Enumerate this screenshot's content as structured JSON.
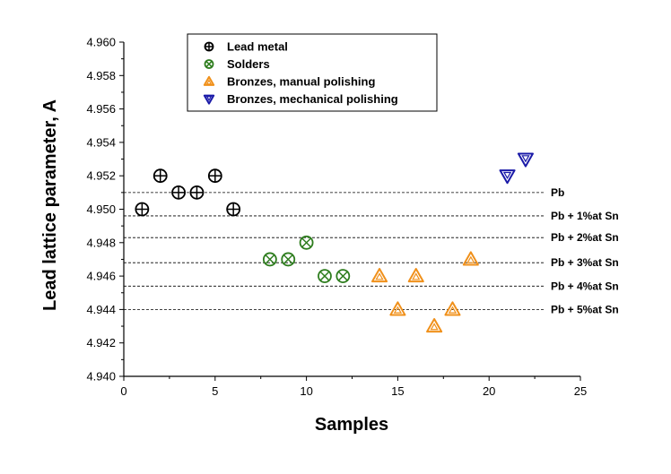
{
  "chart_data": {
    "type": "scatter",
    "title": "",
    "xlabel": "Samples",
    "ylabel": "Lead lattice parameter, A",
    "xlim": [
      0,
      25
    ],
    "ylim": [
      4.94,
      4.96
    ],
    "xticks": [
      "0",
      "5",
      "10",
      "15",
      "20",
      "25"
    ],
    "yticks": [
      "4.940",
      "4.942",
      "4.944",
      "4.946",
      "4.948",
      "4.950",
      "4.952",
      "4.954",
      "4.956",
      "4.958",
      "4.960"
    ],
    "grid": false,
    "legend_position": "top-left",
    "series": [
      {
        "name": "Lead metal",
        "marker": "circle-plus",
        "color": "#000000",
        "x": [
          1,
          2,
          3,
          4,
          5,
          6
        ],
        "y": [
          4.95,
          4.952,
          4.951,
          4.951,
          4.952,
          4.95
        ]
      },
      {
        "name": "Solders",
        "marker": "circle-x",
        "color": "#2e7d1e",
        "x": [
          8,
          9,
          10,
          11,
          12
        ],
        "y": [
          4.947,
          4.947,
          4.948,
          4.946,
          4.946
        ]
      },
      {
        "name": "Bronzes, manual polishing",
        "marker": "triangle-up",
        "color": "#f0901a",
        "x": [
          14,
          15,
          16,
          17,
          18,
          19
        ],
        "y": [
          4.946,
          4.944,
          4.946,
          4.943,
          4.944,
          4.947
        ]
      },
      {
        "name": "Bronzes, mechanical polishing",
        "marker": "triangle-down",
        "color": "#1a1aa8",
        "x": [
          21,
          22
        ],
        "y": [
          4.952,
          4.953
        ]
      }
    ],
    "reference_lines": [
      {
        "label": "Pb",
        "y": 4.951
      },
      {
        "label": "Pb + 1%at Sn",
        "y": 4.9496
      },
      {
        "label": "Pb + 2%at Sn",
        "y": 4.9483
      },
      {
        "label": "Pb + 3%at Sn",
        "y": 4.9468
      },
      {
        "label": "Pb + 4%at Sn",
        "y": 4.9454
      },
      {
        "label": "Pb + 5%at Sn",
        "y": 4.944
      }
    ]
  }
}
